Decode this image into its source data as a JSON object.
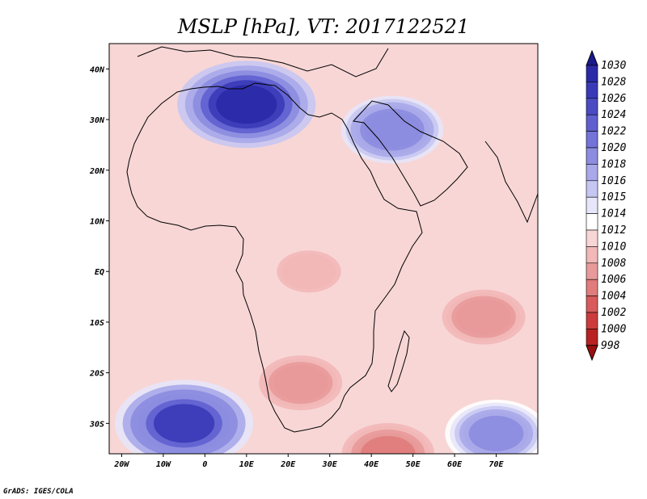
{
  "title": "MSLP [hPa], VT: 2017122521",
  "credit": "GrADS: IGES/COLA",
  "map": {
    "lon_range": [
      -23,
      80
    ],
    "lat_range": [
      -36,
      45
    ],
    "lon_ticks": [
      {
        "value": -20,
        "label": "20W"
      },
      {
        "value": -10,
        "label": "10W"
      },
      {
        "value": 0,
        "label": "0"
      },
      {
        "value": 10,
        "label": "10E"
      },
      {
        "value": 20,
        "label": "20E"
      },
      {
        "value": 30,
        "label": "30E"
      },
      {
        "value": 40,
        "label": "40E"
      },
      {
        "value": 50,
        "label": "50E"
      },
      {
        "value": 60,
        "label": "60E"
      },
      {
        "value": 70,
        "label": "70E"
      }
    ],
    "lat_ticks": [
      {
        "value": 40,
        "label": "40N"
      },
      {
        "value": 30,
        "label": "30N"
      },
      {
        "value": 20,
        "label": "20N"
      },
      {
        "value": 10,
        "label": "10N"
      },
      {
        "value": 0,
        "label": "EQ"
      },
      {
        "value": -10,
        "label": "10S"
      },
      {
        "value": -20,
        "label": "20S"
      },
      {
        "value": -30,
        "label": "30S"
      }
    ]
  },
  "colorbar": {
    "labels": [
      "1030",
      "1028",
      "1026",
      "1024",
      "1022",
      "1020",
      "1018",
      "1016",
      "1015",
      "1014",
      "1012",
      "1010",
      "1008",
      "1006",
      "1004",
      "1002",
      "1000",
      "998"
    ],
    "colors": [
      "#1a1a8c",
      "#2a2aa8",
      "#3a3ab8",
      "#4b4bc4",
      "#5f5fd0",
      "#7373d8",
      "#8c8ce0",
      "#a8a8ea",
      "#c6c6f2",
      "#e6e6fa",
      "#ffffff",
      "#f8d6d6",
      "#f2b8b8",
      "#e89a9a",
      "#e07c7c",
      "#d85a5a",
      "#cc3c3c",
      "#b82222",
      "#9c1010"
    ]
  },
  "field": {
    "levels": [
      {
        "value": 1030,
        "color": "#2a2aa8"
      },
      {
        "value": 1027,
        "color": "#3a3ab8"
      },
      {
        "value": 1024,
        "color": "#5f5fd0"
      },
      {
        "value": 1021,
        "color": "#8c8ce0"
      },
      {
        "value": 1018,
        "color": "#a8a8ea"
      },
      {
        "value": 1016,
        "color": "#c6c6f2"
      },
      {
        "value": 1015,
        "color": "#e6e6fa"
      },
      {
        "value": 1014,
        "color": "#ffffff"
      },
      {
        "value": 1012,
        "color": "#f8d6d6"
      },
      {
        "value": 1010,
        "color": "#f2b8b8"
      },
      {
        "value": 1008,
        "color": "#e89a9a"
      },
      {
        "value": 1006,
        "color": "#e07c7c"
      },
      {
        "value": 1004,
        "color": "#d85a5a"
      }
    ],
    "features": [
      {
        "name": "saharan-high",
        "lon": 10,
        "lat": 33,
        "value": 1030
      },
      {
        "name": "arabian-high",
        "lon": 45,
        "lat": 28,
        "value": 1022
      },
      {
        "name": "south-atlantic-high",
        "lon": -5,
        "lat": -30,
        "value": 1026
      },
      {
        "name": "south-indian-high",
        "lon": 70,
        "lat": -32,
        "value": 1020
      },
      {
        "name": "central-africa-low",
        "lon": 25,
        "lat": 0,
        "value": 1010
      },
      {
        "name": "kalahari-low",
        "lon": 23,
        "lat": -22,
        "value": 1008
      },
      {
        "name": "indian-ocean-low",
        "lon": 67,
        "lat": -9,
        "value": 1008
      },
      {
        "name": "madagascar-south-low",
        "lon": 44,
        "lat": -36,
        "value": 1006
      }
    ]
  }
}
